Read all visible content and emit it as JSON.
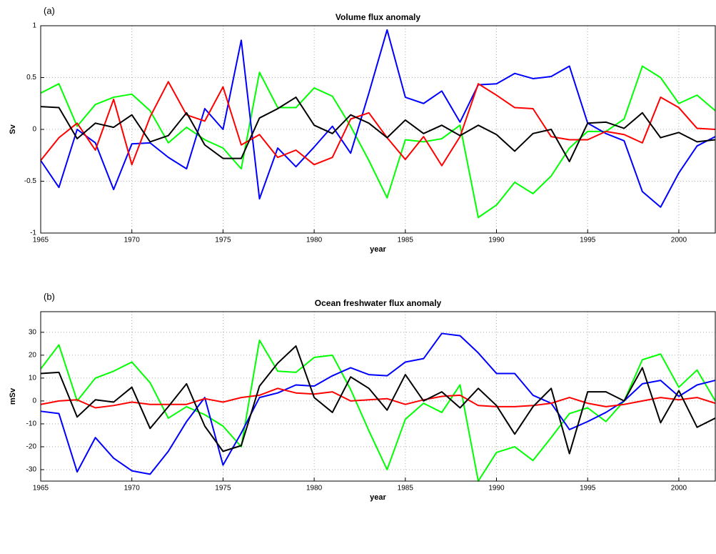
{
  "chart_data": [
    {
      "type": "line",
      "panel_label": "(a)",
      "title": "Volume flux anomaly",
      "x_label": "year",
      "y_label": "Sv",
      "x": [
        1965,
        1966,
        1967,
        1968,
        1969,
        1970,
        1971,
        1972,
        1973,
        1974,
        1975,
        1976,
        1977,
        1978,
        1979,
        1980,
        1981,
        1982,
        1983,
        1984,
        1985,
        1986,
        1987,
        1988,
        1989,
        1990,
        1991,
        1992,
        1993,
        1994,
        1995,
        1996,
        1997,
        1998,
        1999,
        2000,
        2001,
        2002
      ],
      "xlim": [
        1965,
        2002
      ],
      "xticks": [
        1965,
        1970,
        1975,
        1980,
        1985,
        1990,
        1995,
        2000
      ],
      "ylim": [
        -1,
        1
      ],
      "yticks": [
        -1,
        -0.5,
        0,
        0.5,
        1
      ],
      "grid": true,
      "series": [
        {
          "color": "#00ff00",
          "values": [
            0.35,
            0.44,
            0.03,
            0.24,
            0.31,
            0.34,
            0.18,
            -0.13,
            0.02,
            -0.1,
            -0.18,
            -0.38,
            0.55,
            0.21,
            0.21,
            0.4,
            0.32,
            0.03,
            -0.3,
            -0.66,
            -0.1,
            -0.12,
            -0.09,
            0.04,
            -0.85,
            -0.73,
            -0.51,
            -0.62,
            -0.45,
            -0.18,
            -0.02,
            -0.02,
            0.1,
            0.61,
            0.5,
            0.25,
            0.33,
            0.18
          ]
        },
        {
          "color": "#0000ff",
          "values": [
            -0.3,
            -0.56,
            0.0,
            -0.13,
            -0.58,
            -0.14,
            -0.13,
            -0.27,
            -0.38,
            0.2,
            0.0,
            0.86,
            -0.67,
            -0.18,
            -0.36,
            -0.17,
            0.03,
            -0.23,
            0.35,
            0.96,
            0.31,
            0.25,
            0.37,
            0.07,
            0.43,
            0.44,
            0.54,
            0.49,
            0.51,
            0.61,
            0.06,
            -0.04,
            -0.11,
            -0.6,
            -0.75,
            -0.42,
            -0.16,
            -0.07
          ]
        },
        {
          "color": "#ff0000",
          "values": [
            -0.3,
            -0.08,
            0.06,
            -0.2,
            0.29,
            -0.34,
            0.12,
            0.46,
            0.14,
            0.08,
            0.41,
            -0.15,
            -0.05,
            -0.27,
            -0.2,
            -0.34,
            -0.27,
            0.1,
            0.16,
            -0.08,
            -0.29,
            -0.07,
            -0.35,
            -0.07,
            0.44,
            0.33,
            0.21,
            0.2,
            -0.07,
            -0.1,
            -0.1,
            -0.02,
            -0.05,
            -0.13,
            0.31,
            0.21,
            0.01,
            0.0
          ]
        },
        {
          "color": "#000000",
          "values": [
            0.22,
            0.21,
            -0.09,
            0.06,
            0.02,
            0.14,
            -0.12,
            -0.06,
            0.16,
            -0.15,
            -0.28,
            -0.28,
            0.11,
            0.2,
            0.31,
            0.04,
            -0.04,
            0.14,
            0.06,
            -0.08,
            0.09,
            -0.04,
            0.04,
            -0.06,
            0.04,
            -0.05,
            -0.21,
            -0.04,
            0.0,
            -0.31,
            0.06,
            0.07,
            0.01,
            0.16,
            -0.08,
            -0.03,
            -0.12,
            -0.1
          ]
        }
      ]
    },
    {
      "type": "line",
      "panel_label": "(b)",
      "title": "Ocean freshwater flux anomaly",
      "x_label": "year",
      "y_label": "mSv",
      "x": [
        1965,
        1966,
        1967,
        1968,
        1969,
        1970,
        1971,
        1972,
        1973,
        1974,
        1975,
        1976,
        1977,
        1978,
        1979,
        1980,
        1981,
        1982,
        1983,
        1984,
        1985,
        1986,
        1987,
        1988,
        1989,
        1990,
        1991,
        1992,
        1993,
        1994,
        1995,
        1996,
        1997,
        1998,
        1999,
        2000,
        2001,
        2002
      ],
      "xlim": [
        1965,
        2002
      ],
      "xticks": [
        1965,
        1970,
        1975,
        1980,
        1985,
        1990,
        1995,
        2000
      ],
      "ylim": [
        -35,
        39
      ],
      "yticks": [
        -30,
        -20,
        -10,
        0,
        10,
        20,
        30
      ],
      "grid": true,
      "series": [
        {
          "color": "#00ff00",
          "values": [
            14,
            24.5,
            0,
            10,
            13,
            17,
            8,
            -7.5,
            -2.5,
            -6,
            -11,
            -20,
            26.5,
            13,
            12.5,
            19,
            20,
            5,
            -13,
            -30,
            -8,
            -1,
            -5,
            7,
            -35,
            -22.5,
            -20,
            -26,
            -16,
            -5.5,
            -3,
            -9,
            0,
            18,
            20.5,
            6,
            13.5,
            0
          ]
        },
        {
          "color": "#0000ff",
          "values": [
            -4.5,
            -5.5,
            -31,
            -16,
            -25,
            -30.5,
            -32,
            -22,
            -9,
            1.5,
            -28,
            -14,
            1.5,
            3.5,
            7,
            6.5,
            11,
            14.5,
            11.5,
            11,
            17,
            18.5,
            29.5,
            28.5,
            21,
            12,
            12,
            2.5,
            -1,
            -12.5,
            -9,
            -5,
            0,
            7.5,
            9,
            2,
            7,
            9
          ]
        },
        {
          "color": "#ff0000",
          "values": [
            -1.5,
            0,
            0.5,
            -3,
            -2,
            -0.5,
            -1.5,
            -1.5,
            -1.5,
            1,
            -0.5,
            1.5,
            2.5,
            5.5,
            3.5,
            3,
            4,
            0,
            0.5,
            1,
            -1.5,
            0.5,
            2,
            2.5,
            -2,
            -2.5,
            -2.5,
            -2,
            -1,
            1.5,
            -1,
            -2.5,
            -1.5,
            0,
            1.5,
            0.5,
            1.5,
            -1
          ]
        },
        {
          "color": "#000000",
          "values": [
            12,
            12.5,
            -7,
            0.5,
            -0.5,
            6,
            -12,
            -2.5,
            7.5,
            -11,
            -22,
            -19.5,
            6.5,
            16.5,
            24,
            1.5,
            -5,
            10.5,
            5.5,
            -4,
            11.5,
            0,
            4,
            -3,
            5.5,
            -2,
            -14.5,
            -2.5,
            5.5,
            -23,
            4,
            4,
            0,
            14.5,
            -9.5,
            4.5,
            -11.5,
            -7.5
          ]
        }
      ]
    }
  ]
}
